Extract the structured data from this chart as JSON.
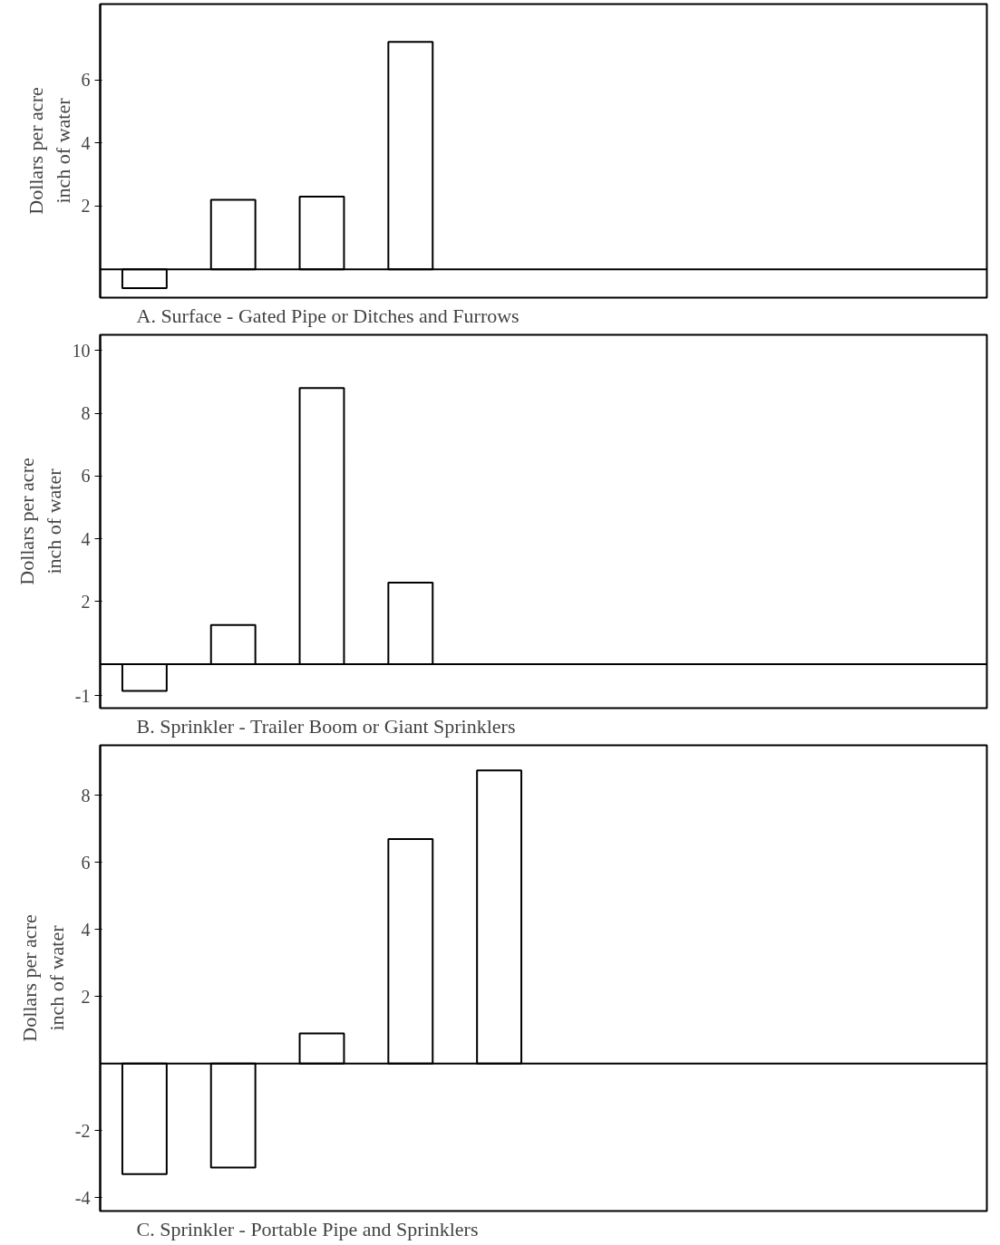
{
  "chart_data": [
    {
      "type": "bar",
      "title": "A.  Surface - Gated Pipe or Ditches and Furrows",
      "ylabel": "Dollars per acre\ninch of water",
      "categories": [
        null,
        null,
        null,
        null,
        null,
        null,
        null,
        null,
        null,
        null
      ],
      "values": [
        -0.6,
        2.2,
        2.3,
        7.2,
        null,
        null,
        null,
        null,
        null,
        null
      ],
      "color": "#ffffff",
      "ylim": [
        -0.9,
        8.4
      ],
      "yticks": [
        2,
        4,
        6
      ],
      "grid": false
    },
    {
      "type": "bar",
      "title": "B.  Sprinkler - Trailer Boom or Giant Sprinklers",
      "ylabel": "Dollars per acre\ninch of water",
      "categories": [
        null,
        null,
        null,
        null,
        null,
        null,
        null,
        null,
        null,
        null
      ],
      "values": [
        -0.85,
        1.25,
        8.8,
        2.6,
        null,
        null,
        null,
        null,
        null,
        null
      ],
      "color": "#ffffff",
      "ylim": [
        -1.4,
        10.5
      ],
      "yticks": [
        -1,
        2,
        4,
        6,
        8,
        10
      ],
      "grid": false
    },
    {
      "type": "bar",
      "title": "C.  Sprinkler - Portable Pipe and Sprinklers",
      "ylabel": "Dollars per acre\ninch of water",
      "categories": [
        null,
        null,
        null,
        null,
        null,
        null,
        null,
        null,
        null,
        null
      ],
      "values": [
        -3.3,
        -3.1,
        0.9,
        6.7,
        8.75,
        null,
        null,
        null,
        null,
        null
      ],
      "color": "#ffffff",
      "ylim": [
        -4.4,
        9.5
      ],
      "yticks": [
        -4,
        -2,
        2,
        4,
        6,
        8
      ],
      "grid": false
    }
  ]
}
